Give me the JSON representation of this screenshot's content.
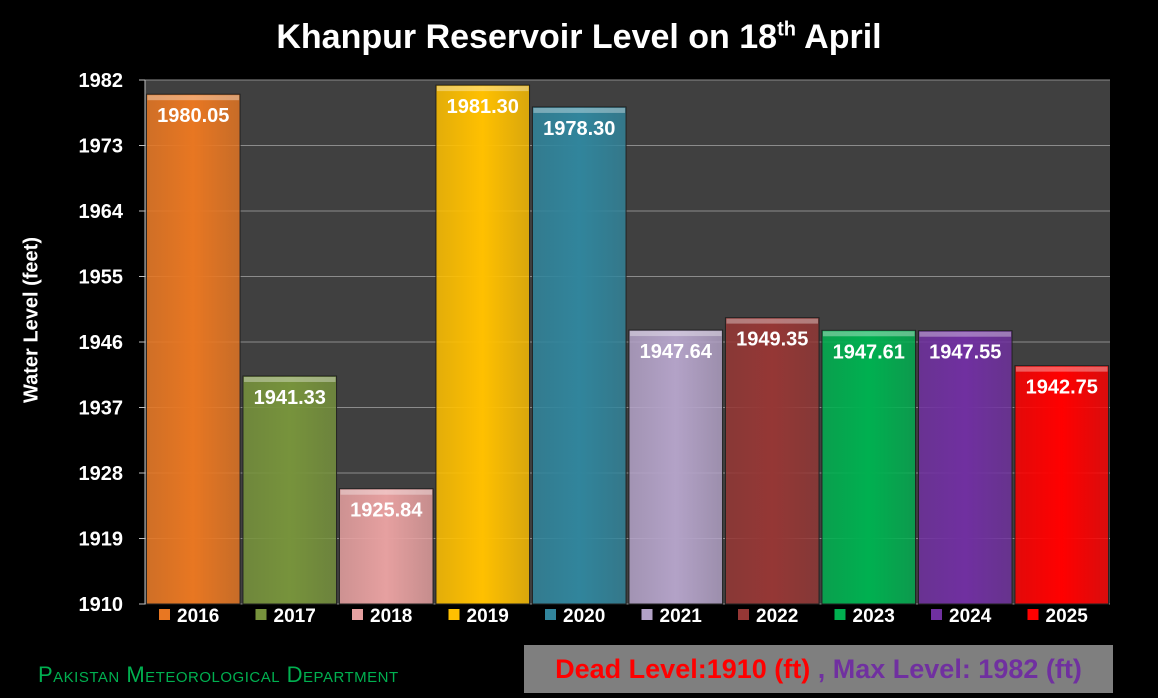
{
  "title_main": "Khanpur Reservoir Level on 18",
  "title_sup": "th",
  "title_end": " April",
  "footer": {
    "org": "Pakistan Meteorological Department",
    "dead_level": "Dead Level:1910 (ft)",
    "separator": " , ",
    "max_level": "Max Level: 1982 (ft)"
  },
  "chart_data": {
    "type": "bar",
    "title": "Khanpur Reservoir Level on 18th April",
    "ylabel": "Water Level  (feet)",
    "xlabel": "",
    "ylim": [
      1910,
      1982
    ],
    "yticks": [
      1910,
      1919,
      1928,
      1937,
      1946,
      1955,
      1964,
      1973,
      1982
    ],
    "grid": true,
    "legend": "bottom",
    "categories": [
      "2016",
      "2017",
      "2018",
      "2019",
      "2020",
      "2021",
      "2022",
      "2023",
      "2024",
      "2025"
    ],
    "values": [
      1980.05,
      1941.33,
      1925.84,
      1981.3,
      1978.3,
      1947.64,
      1949.35,
      1947.61,
      1947.55,
      1942.75
    ],
    "labels": [
      "1980.05",
      "1941.33",
      "1925.84",
      "1981.30",
      "1978.30",
      "1947.64",
      "1949.35",
      "1947.61",
      "1947.55",
      "1942.75"
    ],
    "colors": [
      "#e87722",
      "#77933c",
      "#e6a0a0",
      "#ffc000",
      "#31859c",
      "#b3a2c7",
      "#953735",
      "#00b050",
      "#7030a0",
      "#ff0000"
    ],
    "label_colors": [
      "#ffffff",
      "#ffffff",
      "#ffffff",
      "#ffffff",
      "#ffffff",
      "#ffffff",
      "#ffffff",
      "#ffffff",
      "#ffffff",
      "#ffffff"
    ]
  }
}
